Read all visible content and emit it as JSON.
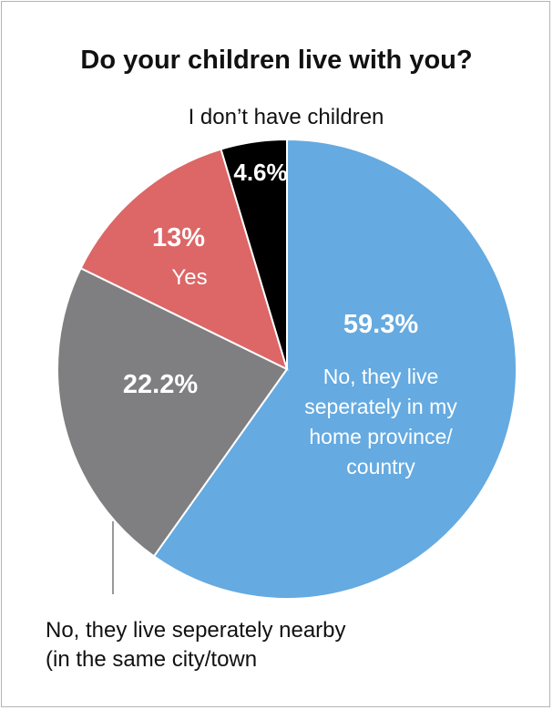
{
  "chart_data": {
    "type": "pie",
    "title": "Do your children live with you?",
    "slices": [
      {
        "label_lines": [
          "No, they live",
          "seperately in my",
          "home province/",
          "country"
        ],
        "value": 59.3,
        "value_label": "59.3%",
        "color": "#65aae0"
      },
      {
        "label_lines": [
          "No, they live seperately nearby",
          "(in the same city/town"
        ],
        "value": 22.2,
        "value_label": "22.2%",
        "color": "#7f7f81"
      },
      {
        "label_lines": [
          "Yes"
        ],
        "value": 13,
        "value_label": "13%",
        "color": "#dd6666"
      },
      {
        "label_lines": [
          "I don’t have children"
        ],
        "value": 4.6,
        "value_label": "4.6%",
        "color": "#000000"
      }
    ]
  }
}
